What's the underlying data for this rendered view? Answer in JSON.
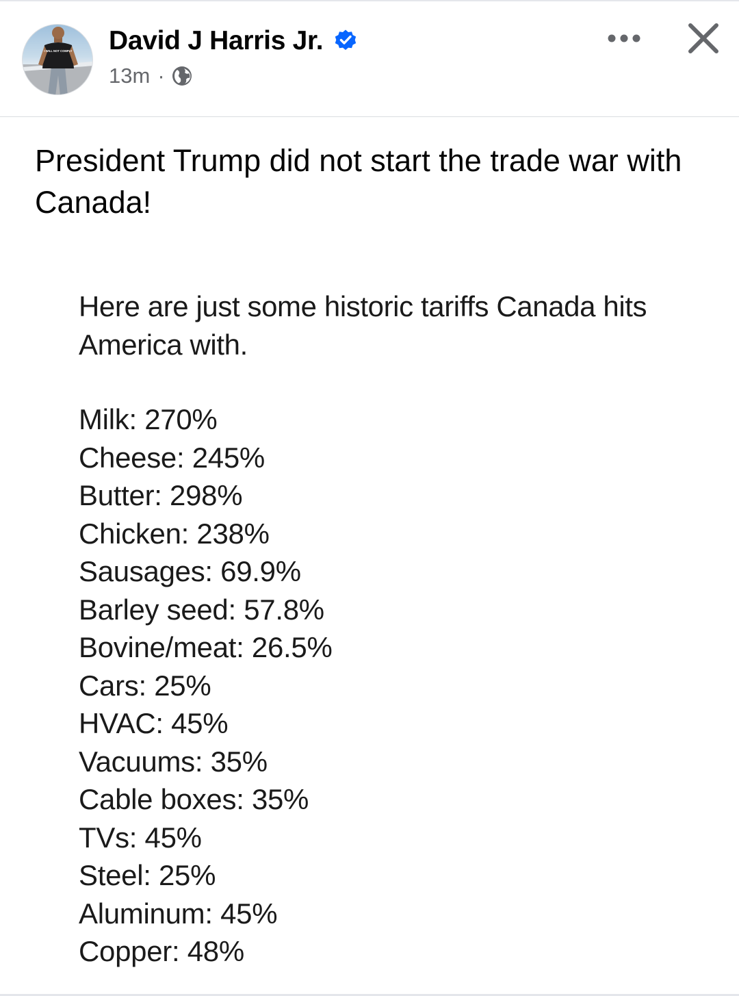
{
  "post": {
    "author": "David J Harris Jr.",
    "verified_icon": "verified-badge-icon",
    "time": "13m",
    "separator": "·",
    "privacy_icon": "globe-icon",
    "text": "President Trump did not start the trade war with Canada!",
    "avatar_shirt_text": "I WILL NOT COMPLY"
  },
  "header": {
    "more_icon": "more-horizontal-icon",
    "close_icon": "close-icon"
  },
  "image": {
    "intro": "Here are just some historic tariffs Canada hits America with.",
    "tariffs": [
      {
        "item": "Milk",
        "rate": "270%"
      },
      {
        "item": "Cheese",
        "rate": "245%"
      },
      {
        "item": "Butter",
        "rate": "298%"
      },
      {
        "item": "Chicken",
        "rate": "238%"
      },
      {
        "item": "Sausages",
        "rate": "69.9%"
      },
      {
        "item": "Barley seed",
        "rate": "57.8%"
      },
      {
        "item": "Bovine/meat",
        "rate": "26.5%"
      },
      {
        "item": "Cars",
        "rate": "25%"
      },
      {
        "item": "HVAC",
        "rate": "45%"
      },
      {
        "item": "Vacuums",
        "rate": "35%"
      },
      {
        "item": "Cable boxes",
        "rate": "35%"
      },
      {
        "item": "TVs",
        "rate": "45%"
      },
      {
        "item": "Steel",
        "rate": "25%"
      },
      {
        "item": "Aluminum",
        "rate": "45%"
      },
      {
        "item": "Copper",
        "rate": "48%"
      }
    ]
  },
  "colors": {
    "verified_blue": "#0866ff",
    "secondary_text": "#65676b",
    "divider": "#dadde1"
  }
}
